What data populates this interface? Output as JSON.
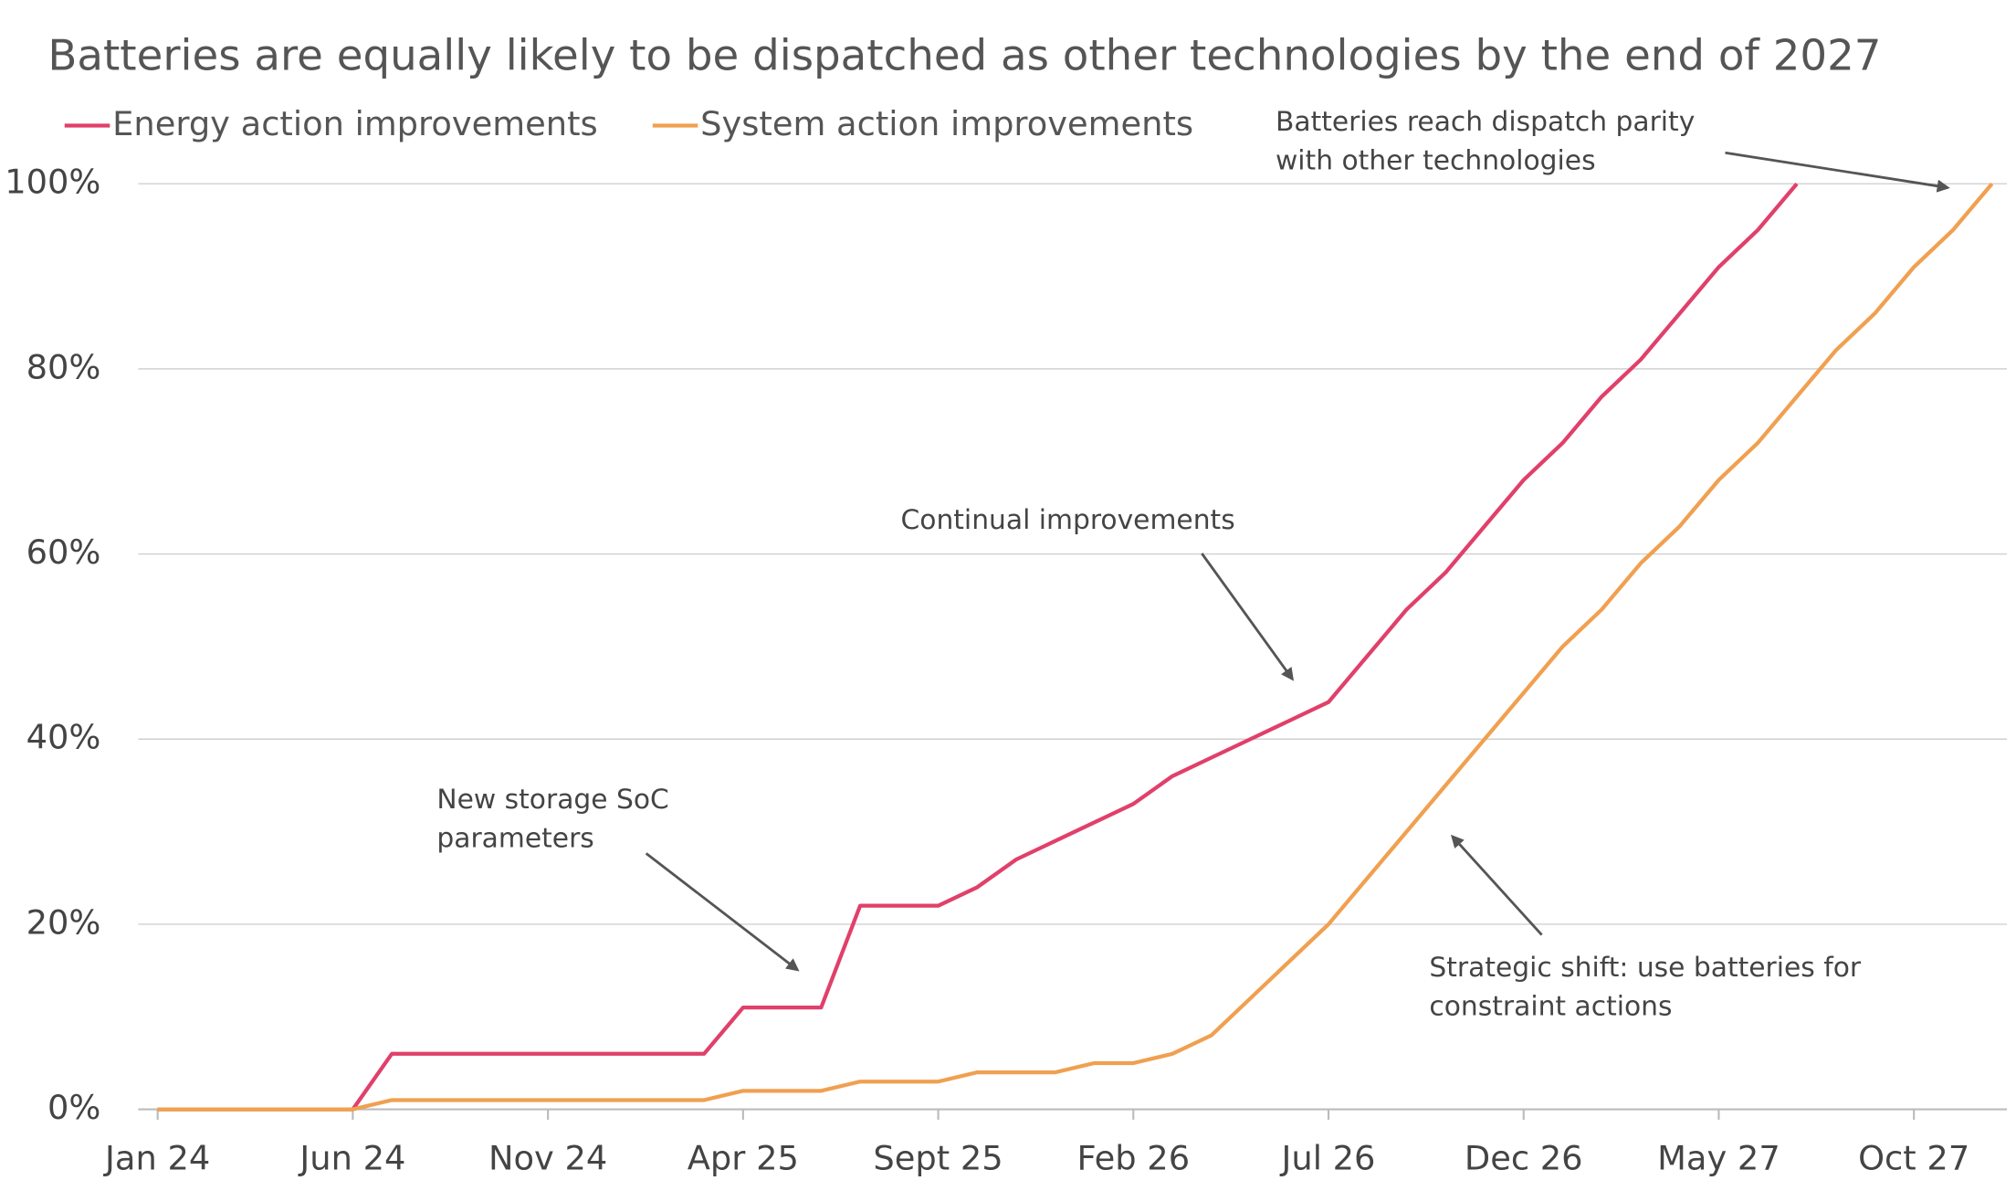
{
  "chart_data": {
    "type": "line",
    "title": "Batteries are equally likely to be dispatched as other technologies by the end of 2027",
    "categories": [
      "Jan 24",
      null,
      null,
      null,
      null,
      "Jun 24",
      null,
      null,
      null,
      null,
      "Nov 24",
      null,
      null,
      null,
      null,
      "Apr 25",
      null,
      null,
      null,
      null,
      "Sept 25",
      null,
      null,
      null,
      null,
      "Feb 26",
      null,
      null,
      null,
      null,
      "Jul 26",
      null,
      null,
      null,
      null,
      "Dec 26",
      null,
      null,
      null,
      null,
      "May 27",
      null,
      null,
      null,
      null,
      "Oct 27",
      null,
      null
    ],
    "series": [
      {
        "name": "Energy action improvements",
        "color": "#e0406a",
        "values": [
          0,
          0,
          0,
          0,
          0,
          0,
          6,
          6,
          6,
          6,
          6,
          6,
          6,
          6,
          6,
          11,
          11,
          11,
          22,
          22,
          22,
          24,
          27,
          29,
          31,
          33,
          36,
          38,
          40,
          42,
          44,
          49,
          54,
          58,
          63,
          68,
          72,
          77,
          81,
          86,
          91,
          95,
          100,
          null,
          null,
          null,
          null,
          null
        ]
      },
      {
        "name": "System action improvements",
        "color": "#f0a050",
        "values": [
          0,
          0,
          0,
          0,
          0,
          0,
          1,
          1,
          1,
          1,
          1,
          1,
          1,
          1,
          1,
          2,
          2,
          2,
          3,
          3,
          3,
          4,
          4,
          4,
          5,
          5,
          6,
          8,
          12,
          16,
          20,
          25,
          30,
          35,
          40,
          45,
          50,
          54,
          59,
          63,
          68,
          72,
          77,
          82,
          86,
          91,
          95,
          100
        ]
      }
    ],
    "ylim": [
      0,
      100
    ],
    "yticks": [
      {
        "value": 0,
        "label": "0%"
      },
      {
        "value": 20,
        "label": "20%"
      },
      {
        "value": 40,
        "label": "40%"
      },
      {
        "value": 60,
        "label": "60%"
      },
      {
        "value": 80,
        "label": "80%"
      },
      {
        "value": 100,
        "label": "100%"
      }
    ],
    "grid": true,
    "annotations": [
      {
        "lines": [
          "New storage SoC",
          "parameters"
        ]
      },
      {
        "lines": [
          "Continual improvements"
        ]
      },
      {
        "lines": [
          "Batteries reach dispatch parity",
          "with other technologies"
        ]
      },
      {
        "lines": [
          "Strategic shift: use batteries for",
          "constraint actions"
        ]
      }
    ]
  }
}
